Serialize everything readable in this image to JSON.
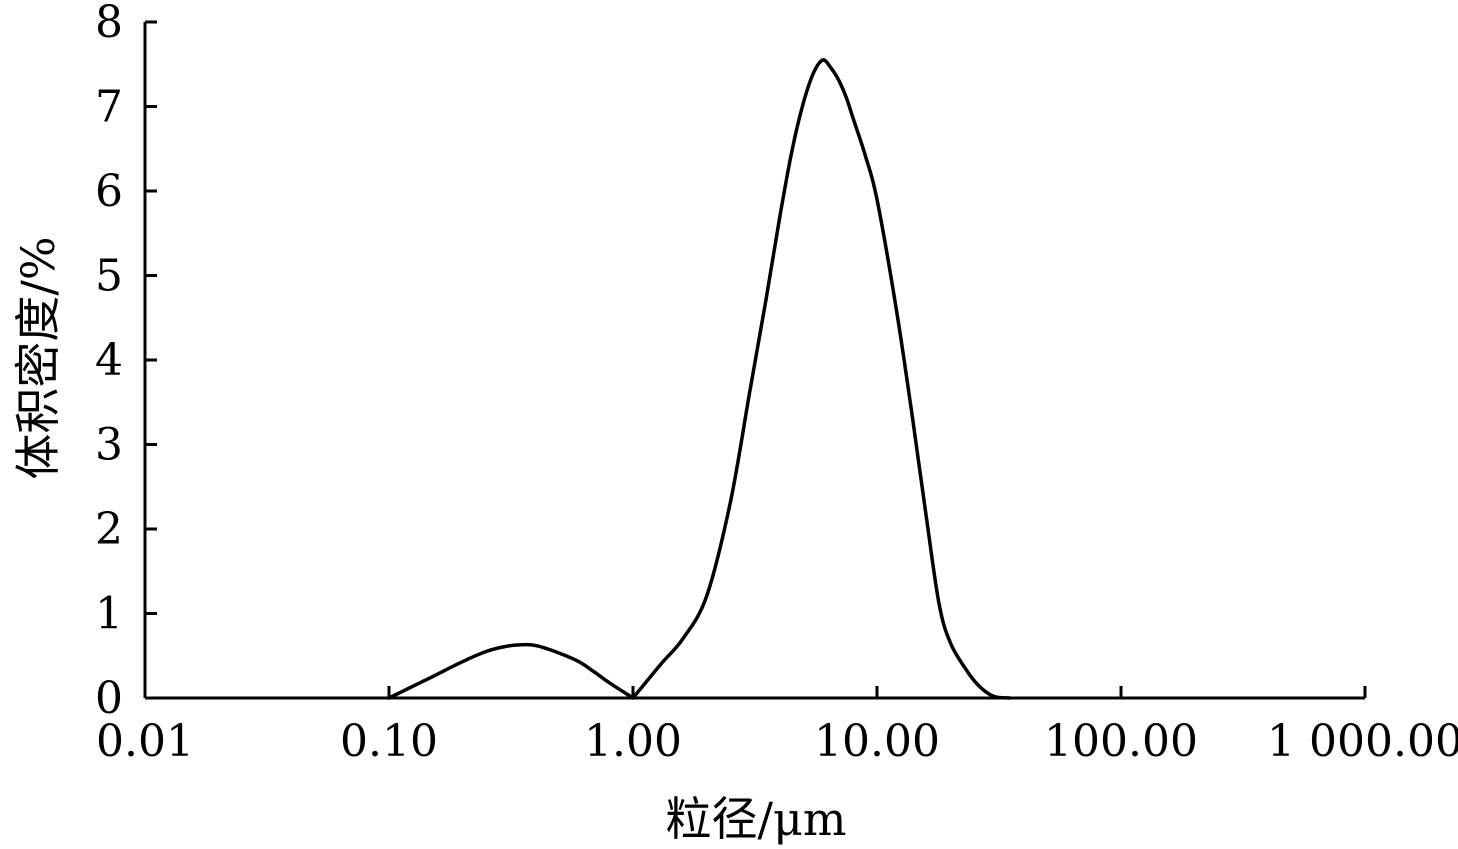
{
  "chart_data": {
    "type": "line",
    "xscale": "log",
    "xlabel": "粒径/μm",
    "ylabel": "体积密度/%",
    "xlim": [
      0.01,
      1000
    ],
    "ylim": [
      0,
      8
    ],
    "x_ticks": [
      0.01,
      0.1,
      1,
      10,
      100,
      1000
    ],
    "x_tick_labels": [
      "0.01",
      "0.10",
      "1.00",
      "10.00",
      "100.00",
      "1 000.00"
    ],
    "y_ticks": [
      0,
      1,
      2,
      3,
      4,
      5,
      6,
      7,
      8
    ],
    "y_tick_labels": [
      "0",
      "1",
      "2",
      "3",
      "4",
      "5",
      "6",
      "7",
      "8"
    ],
    "grid": false,
    "series": [
      {
        "x": [
          0.1,
          0.15,
          0.2,
          0.25,
          0.3,
          0.35,
          0.4,
          0.5,
          0.6,
          0.7,
          0.8,
          1.0,
          1.3,
          1.6,
          2.0,
          2.5,
          3.0,
          3.5,
          4.0,
          4.5,
          5.0,
          5.5,
          6.0,
          6.5,
          7.0,
          7.5,
          8.0,
          9.0,
          10.0,
          12.0,
          14.0,
          16.0,
          18.0,
          20.0,
          23.0,
          26.0,
          30.0,
          35.0
        ],
        "y": [
          0.0,
          0.25,
          0.43,
          0.55,
          0.61,
          0.63,
          0.62,
          0.53,
          0.43,
          0.3,
          0.18,
          0.0,
          0.4,
          0.7,
          1.2,
          2.3,
          3.6,
          4.7,
          5.7,
          6.5,
          7.05,
          7.4,
          7.55,
          7.45,
          7.3,
          7.1,
          6.85,
          6.4,
          5.9,
          4.6,
          3.3,
          2.1,
          1.1,
          0.65,
          0.35,
          0.15,
          0.02,
          0.0
        ]
      }
    ]
  }
}
